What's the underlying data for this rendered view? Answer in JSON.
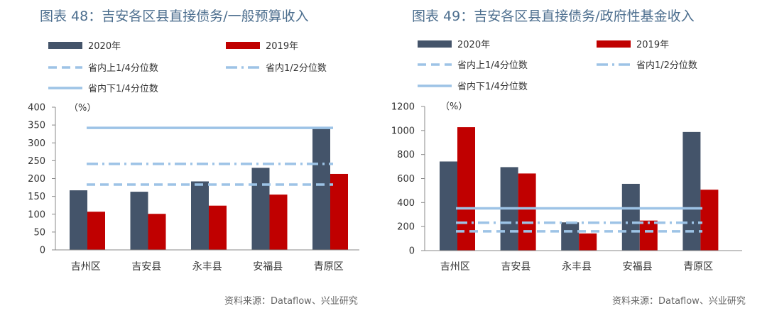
{
  "colors": {
    "series_2020": "#44546a",
    "series_2019": "#c00000",
    "quartile_lines": "#9dc3e6",
    "title": "#4c6e8e"
  },
  "chart_data": [
    {
      "type": "bar",
      "title": "图表 48：吉安各区县直接债务/一般预算收入",
      "unit_label": "（%）",
      "source": "资料来源：Dataflow、兴业研究",
      "categories": [
        "吉州区",
        "吉安县",
        "永丰县",
        "安福县",
        "青原区"
      ],
      "series": [
        {
          "name": "2020年",
          "values": [
            167,
            163,
            192,
            230,
            340
          ]
        },
        {
          "name": "2019年",
          "values": [
            107,
            101,
            124,
            155,
            213
          ]
        }
      ],
      "reference_lines": [
        {
          "name": "省内上1/4分位数",
          "value": 183,
          "style": "dashed"
        },
        {
          "name": "省内1/2分位数",
          "value": 241,
          "style": "dash-dot"
        },
        {
          "name": "省内下1/4分位数",
          "value": 342,
          "style": "solid"
        }
      ],
      "ylim": [
        0,
        400
      ],
      "yticks": [
        0,
        50,
        100,
        150,
        200,
        250,
        300,
        350,
        400
      ],
      "grid": false
    },
    {
      "type": "bar",
      "title": "图表 49：吉安各区县直接债务/政府性基金收入",
      "unit_label": "（%）",
      "source": "资料来源：Dataflow、兴业研究",
      "categories": [
        "吉州区",
        "吉安县",
        "永丰县",
        "安福县",
        "青原区"
      ],
      "series": [
        {
          "name": "2020年",
          "values": [
            742,
            695,
            235,
            556,
            988
          ]
        },
        {
          "name": "2019年",
          "values": [
            1028,
            642,
            143,
            250,
            507
          ]
        }
      ],
      "reference_lines": [
        {
          "name": "省内上1/4分位数",
          "value": 160,
          "style": "dashed"
        },
        {
          "name": "省内1/2分位数",
          "value": 232,
          "style": "dash-dot"
        },
        {
          "name": "省内下1/4分位数",
          "value": 352,
          "style": "solid"
        }
      ],
      "ylim": [
        0,
        1200
      ],
      "yticks": [
        0,
        200,
        400,
        600,
        800,
        1000,
        1200
      ],
      "grid": false
    }
  ]
}
